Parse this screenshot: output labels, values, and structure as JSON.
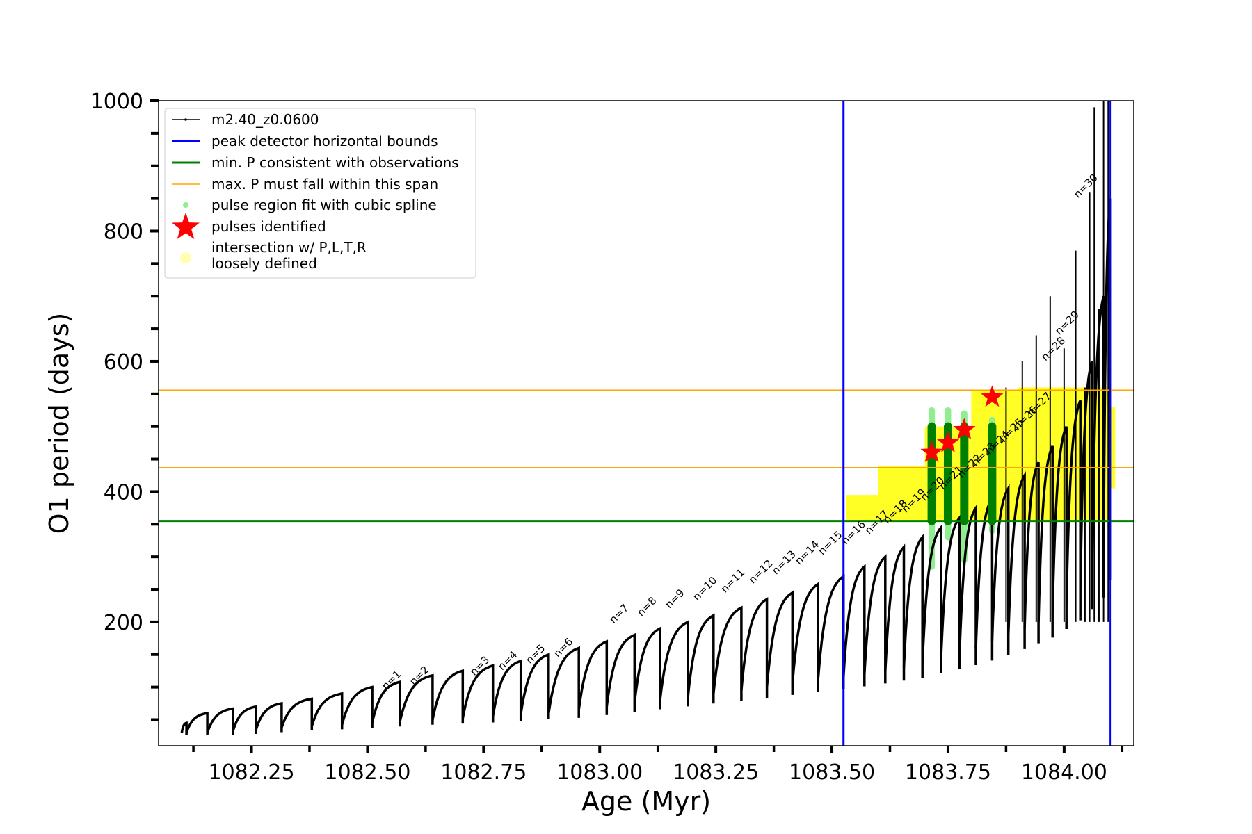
{
  "chart_data": {
    "type": "line",
    "title": "",
    "xlabel": "Age (Myr)",
    "ylabel": "O1 period (days)",
    "xlim": [
      1082.05,
      1084.15
    ],
    "ylim": [
      10,
      1000
    ],
    "x_ticks": [
      1082.25,
      1082.5,
      1082.75,
      1083.0,
      1083.25,
      1083.5,
      1083.75,
      1084.0
    ],
    "x_tick_labels": [
      "1082.25",
      "1082.50",
      "1082.75",
      "1083.00",
      "1083.25",
      "1083.50",
      "1083.75",
      "1084.00"
    ],
    "y_ticks": [
      200,
      400,
      600,
      800,
      1000
    ],
    "y_tick_labels": [
      "200",
      "400",
      "600",
      "800",
      "1000"
    ],
    "grid": false,
    "legend_position": "top-left",
    "legend": [
      {
        "label": "m2.40_z0.0600",
        "kind": "line-dot",
        "color": "#000000"
      },
      {
        "label": "peak detector horizontal bounds",
        "kind": "line",
        "color": "#0000ff"
      },
      {
        "label": "min. P consistent with observations",
        "kind": "line",
        "color": "#008000"
      },
      {
        "label": "max. P must fall within this span",
        "kind": "thin-line",
        "color": "#ffa500"
      },
      {
        "label": "pulse region fit with cubic spline",
        "kind": "dot",
        "color": "#90ee90"
      },
      {
        "label": "pulses identified",
        "kind": "star",
        "color": "#ff0000"
      },
      {
        "label": "intersection w/ P,L,T,R",
        "label2": "loosely defined",
        "kind": "circle",
        "color": "#ffffb0"
      }
    ],
    "colors": {
      "track": "#000000",
      "blue": "#0000ff",
      "green": "#008000",
      "orange": "#ffa500",
      "lightgreen": "#90ee90",
      "red": "#ff0000",
      "yellow": "#ffff00"
    },
    "vertical_lines": [
      1083.525,
      1084.1
    ],
    "min_period": 355,
    "max_period_span": [
      437,
      556
    ],
    "track_segments": [
      {
        "start": 1082.1,
        "end": 1082.11,
        "min": 30,
        "max": 45
      },
      {
        "start": 1082.11,
        "end": 1082.155,
        "min": 30,
        "max": 60
      },
      {
        "start": 1082.155,
        "end": 1082.21,
        "min": 30,
        "max": 67
      },
      {
        "start": 1082.21,
        "end": 1082.26,
        "min": 32,
        "max": 70
      },
      {
        "start": 1082.26,
        "end": 1082.315,
        "min": 35,
        "max": 75
      },
      {
        "start": 1082.315,
        "end": 1082.38,
        "min": 38,
        "max": 82
      },
      {
        "start": 1082.38,
        "end": 1082.445,
        "min": 40,
        "max": 90
      },
      {
        "start": 1082.445,
        "end": 1082.51,
        "min": 42,
        "max": 100
      },
      {
        "start": 1082.51,
        "end": 1082.57,
        "min": 45,
        "max": 108
      },
      {
        "start": 1082.57,
        "end": 1082.64,
        "min": 48,
        "max": 118
      },
      {
        "start": 1082.64,
        "end": 1082.705,
        "min": 50,
        "max": 125
      },
      {
        "start": 1082.705,
        "end": 1082.77,
        "min": 52,
        "max": 133
      },
      {
        "start": 1082.77,
        "end": 1082.83,
        "min": 55,
        "max": 140
      },
      {
        "start": 1082.83,
        "end": 1082.89,
        "min": 58,
        "max": 150
      },
      {
        "start": 1082.89,
        "end": 1082.955,
        "min": 60,
        "max": 160
      },
      {
        "start": 1082.955,
        "end": 1083.015,
        "min": 65,
        "max": 170
      },
      {
        "start": 1083.015,
        "end": 1083.075,
        "min": 70,
        "max": 180
      },
      {
        "start": 1083.075,
        "end": 1083.13,
        "min": 75,
        "max": 190
      },
      {
        "start": 1083.13,
        "end": 1083.19,
        "min": 80,
        "max": 200
      },
      {
        "start": 1083.19,
        "end": 1083.245,
        "min": 85,
        "max": 210
      },
      {
        "start": 1083.245,
        "end": 1083.305,
        "min": 90,
        "max": 222
      },
      {
        "start": 1083.305,
        "end": 1083.36,
        "min": 95,
        "max": 235
      },
      {
        "start": 1083.36,
        "end": 1083.415,
        "min": 100,
        "max": 245
      },
      {
        "start": 1083.415,
        "end": 1083.47,
        "min": 105,
        "max": 258
      },
      {
        "start": 1083.47,
        "end": 1083.525,
        "min": 110,
        "max": 270
      },
      {
        "start": 1083.525,
        "end": 1083.57,
        "min": 115,
        "max": 285
      },
      {
        "start": 1083.57,
        "end": 1083.615,
        "min": 120,
        "max": 300
      },
      {
        "start": 1083.615,
        "end": 1083.655,
        "min": 125,
        "max": 315
      },
      {
        "start": 1083.655,
        "end": 1083.695,
        "min": 130,
        "max": 330
      },
      {
        "start": 1083.695,
        "end": 1083.735,
        "min": 138,
        "max": 345
      },
      {
        "start": 1083.735,
        "end": 1083.775,
        "min": 145,
        "max": 360
      },
      {
        "start": 1083.775,
        "end": 1083.81,
        "min": 152,
        "max": 375
      },
      {
        "start": 1083.81,
        "end": 1083.845,
        "min": 160,
        "max": 390
      },
      {
        "start": 1083.845,
        "end": 1083.88,
        "min": 170,
        "max": 405
      },
      {
        "start": 1083.88,
        "end": 1083.915,
        "min": 180,
        "max": 425
      },
      {
        "start": 1083.915,
        "end": 1083.945,
        "min": 190,
        "max": 445
      },
      {
        "start": 1083.945,
        "end": 1083.975,
        "min": 200,
        "max": 470
      },
      {
        "start": 1083.975,
        "end": 1084.005,
        "min": 215,
        "max": 500
      },
      {
        "start": 1084.005,
        "end": 1084.035,
        "min": 230,
        "max": 540
      },
      {
        "start": 1084.035,
        "end": 1084.06,
        "min": 250,
        "max": 600
      },
      {
        "start": 1084.06,
        "end": 1084.085,
        "min": 270,
        "max": 700
      },
      {
        "start": 1084.085,
        "end": 1084.1,
        "min": 300,
        "max": 850
      }
    ],
    "track_spikes": [
      {
        "x": 1083.875,
        "top": 560
      },
      {
        "x": 1083.91,
        "top": 600
      },
      {
        "x": 1083.94,
        "top": 640
      },
      {
        "x": 1083.97,
        "top": 700
      },
      {
        "x": 1084.0,
        "top": 620
      },
      {
        "x": 1084.025,
        "top": 770
      },
      {
        "x": 1084.045,
        "top": 560
      },
      {
        "x": 1084.055,
        "top": 860
      },
      {
        "x": 1084.065,
        "top": 990
      },
      {
        "x": 1084.075,
        "top": 680
      },
      {
        "x": 1084.085,
        "top": 1000
      },
      {
        "x": 1084.095,
        "top": 1000
      }
    ],
    "pulse_labels": [
      {
        "n": "n=1",
        "x": 1082.54,
        "y": 95
      },
      {
        "n": "n=2",
        "x": 1082.6,
        "y": 102
      },
      {
        "n": "n=3",
        "x": 1082.73,
        "y": 117
      },
      {
        "n": "n=4",
        "x": 1082.79,
        "y": 125
      },
      {
        "n": "n=5",
        "x": 1082.85,
        "y": 135
      },
      {
        "n": "n=6",
        "x": 1082.91,
        "y": 145
      },
      {
        "n": "n=7",
        "x": 1083.03,
        "y": 197
      },
      {
        "n": "n=8",
        "x": 1083.09,
        "y": 208
      },
      {
        "n": "n=9",
        "x": 1083.15,
        "y": 220
      },
      {
        "n": "n=10",
        "x": 1083.21,
        "y": 232
      },
      {
        "n": "n=11",
        "x": 1083.27,
        "y": 244
      },
      {
        "n": "n=12",
        "x": 1083.33,
        "y": 258
      },
      {
        "n": "n=13",
        "x": 1083.38,
        "y": 272
      },
      {
        "n": "n=14",
        "x": 1083.43,
        "y": 287
      },
      {
        "n": "n=15",
        "x": 1083.48,
        "y": 302
      },
      {
        "n": "n=16",
        "x": 1083.53,
        "y": 318
      },
      {
        "n": "n=17",
        "x": 1083.58,
        "y": 334
      },
      {
        "n": "n=18",
        "x": 1083.62,
        "y": 350
      },
      {
        "n": "n=19",
        "x": 1083.66,
        "y": 367
      },
      {
        "n": "n=20",
        "x": 1083.7,
        "y": 385
      },
      {
        "n": "n=21",
        "x": 1083.74,
        "y": 402
      },
      {
        "n": "n=22",
        "x": 1083.78,
        "y": 420
      },
      {
        "n": "n=23",
        "x": 1083.81,
        "y": 438
      },
      {
        "n": "n=24",
        "x": 1083.84,
        "y": 456
      },
      {
        "n": "n=25",
        "x": 1083.87,
        "y": 475
      },
      {
        "n": "n=26",
        "x": 1083.9,
        "y": 494
      },
      {
        "n": "n=27",
        "x": 1083.93,
        "y": 515
      },
      {
        "n": "n=28",
        "x": 1083.96,
        "y": 600
      },
      {
        "n": "n=29",
        "x": 1083.99,
        "y": 640
      },
      {
        "n": "n=30",
        "x": 1084.03,
        "y": 850
      }
    ],
    "pulses_identified": [
      {
        "x": 1083.715,
        "y": 460
      },
      {
        "x": 1083.75,
        "y": 475
      },
      {
        "x": 1083.785,
        "y": 495
      },
      {
        "x": 1083.845,
        "y": 545
      }
    ],
    "spline_regions": [
      {
        "x": 1083.715,
        "low": 285,
        "high": 525
      },
      {
        "x": 1083.75,
        "low": 330,
        "high": 525
      },
      {
        "x": 1083.785,
        "low": 295,
        "high": 520
      },
      {
        "x": 1083.845,
        "low": 340,
        "high": 510
      }
    ],
    "green_bars": [
      {
        "x": 1083.715,
        "low": 355,
        "high": 500
      },
      {
        "x": 1083.75,
        "low": 355,
        "high": 500
      },
      {
        "x": 1083.785,
        "low": 355,
        "high": 500
      },
      {
        "x": 1083.845,
        "low": 355,
        "high": 500
      }
    ],
    "yellow_regions": [
      {
        "x_start": 1083.53,
        "x_end": 1083.6,
        "low": 355,
        "high": 395
      },
      {
        "x_start": 1083.6,
        "x_end": 1083.7,
        "low": 355,
        "high": 440
      },
      {
        "x_start": 1083.7,
        "x_end": 1083.8,
        "low": 355,
        "high": 500
      },
      {
        "x_start": 1083.8,
        "x_end": 1083.9,
        "low": 355,
        "high": 556
      },
      {
        "x_start": 1083.9,
        "x_end": 1084.1,
        "low": 355,
        "high": 560
      },
      {
        "x_start": 1084.1,
        "x_end": 1084.11,
        "low": 405,
        "high": 530
      }
    ]
  }
}
